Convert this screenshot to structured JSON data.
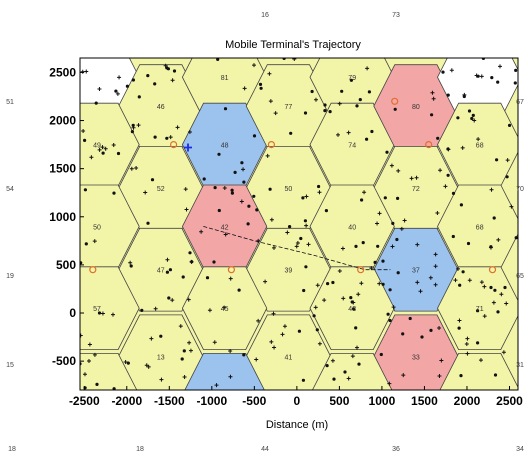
{
  "chart_data": {
    "type": "scatter",
    "title": "Mobile Terminal's Trajectory",
    "xlabel": "Distance (m)",
    "ylabel": "",
    "xlim": [
      -2550,
      2600
    ],
    "ylim": [
      -800,
      2650
    ],
    "xticks": [
      -2500,
      -2000,
      -1500,
      -1000,
      -500,
      0,
      500,
      1000,
      1500,
      2000,
      2500
    ],
    "yticks": [
      -500,
      0,
      500,
      1000,
      1500,
      2000,
      2500
    ],
    "grid": false,
    "colors": {
      "cell_default": "#f2f5a8",
      "cell_blue": "#9cc3ee",
      "cell_red": "#f3a6a6",
      "cell_white": "#ffffff",
      "edge": "#444444",
      "point": "#111111",
      "trajectory": "#111111",
      "bs_marker": "#e0702a",
      "current_position": "#1a2ce6"
    },
    "hex_grid": {
      "apothem": 430,
      "radius": 496
    },
    "cells": [
      {
        "x": -2350,
        "y": 2450,
        "id": "",
        "color": "white"
      },
      {
        "x": -1600,
        "y": 2150,
        "id": "46",
        "color": "default"
      },
      {
        "x": -850,
        "y": 2450,
        "id": "81",
        "color": "default"
      },
      {
        "x": -850,
        "y": 1750,
        "id": "48",
        "color": "blue"
      },
      {
        "x": -100,
        "y": 2150,
        "id": "77",
        "color": "default"
      },
      {
        "x": 650,
        "y": 2450,
        "id": "79",
        "color": "default"
      },
      {
        "x": 650,
        "y": 1750,
        "id": "74",
        "color": "default"
      },
      {
        "x": 1400,
        "y": 2150,
        "id": "80",
        "color": "red"
      },
      {
        "x": 2150,
        "y": 2450,
        "id": "",
        "color": "white"
      },
      {
        "x": 2150,
        "y": 1750,
        "id": "68",
        "color": "default"
      },
      {
        "x": -2350,
        "y": 1750,
        "id": "49",
        "color": "default"
      },
      {
        "x": -1600,
        "y": 1300,
        "id": "52",
        "color": "default"
      },
      {
        "x": -100,
        "y": 1300,
        "id": "50",
        "color": "default"
      },
      {
        "x": 1400,
        "y": 1300,
        "id": "72",
        "color": "default"
      },
      {
        "x": -2350,
        "y": 900,
        "id": "50",
        "color": "default"
      },
      {
        "x": -850,
        "y": 900,
        "id": "42",
        "color": "red"
      },
      {
        "x": 650,
        "y": 900,
        "id": "40",
        "color": "default"
      },
      {
        "x": 2150,
        "y": 900,
        "id": "68",
        "color": "default"
      },
      {
        "x": -1600,
        "y": 450,
        "id": "47",
        "color": "default"
      },
      {
        "x": -100,
        "y": 450,
        "id": "39",
        "color": "default"
      },
      {
        "x": 1400,
        "y": 450,
        "id": "37",
        "color": "blue"
      },
      {
        "x": -2350,
        "y": 50,
        "id": "57",
        "color": "default"
      },
      {
        "x": -850,
        "y": 50,
        "id": "45",
        "color": "default"
      },
      {
        "x": 650,
        "y": 50,
        "id": "43",
        "color": "default"
      },
      {
        "x": 2150,
        "y": 50,
        "id": "71",
        "color": "default"
      },
      {
        "x": -1600,
        "y": -450,
        "id": "13",
        "color": "default"
      },
      {
        "x": -100,
        "y": -450,
        "id": "41",
        "color": "default"
      },
      {
        "x": 1400,
        "y": -450,
        "id": "33",
        "color": "red"
      },
      {
        "x": -850,
        "y": -850,
        "id": "",
        "color": "blue"
      },
      {
        "x": 650,
        "y": -850,
        "id": "",
        "color": "default"
      },
      {
        "x": -2350,
        "y": -850,
        "id": "",
        "color": "default"
      },
      {
        "x": 2150,
        "y": -850,
        "id": "",
        "color": "default"
      }
    ],
    "base_station_markers": [
      {
        "x": -1450,
        "y": 1750
      },
      {
        "x": -300,
        "y": 1750
      },
      {
        "x": 1550,
        "y": 1750
      },
      {
        "x": 1150,
        "y": 2200
      },
      {
        "x": -2400,
        "y": 450
      },
      {
        "x": -770,
        "y": 450
      },
      {
        "x": 750,
        "y": 450
      },
      {
        "x": 2300,
        "y": 450
      }
    ],
    "trajectory": [
      {
        "x": -1100,
        "y": 900
      },
      {
        "x": -500,
        "y": 750
      },
      {
        "x": 200,
        "y": 600
      },
      {
        "x": 800,
        "y": 450
      },
      {
        "x": 1100,
        "y": 450
      }
    ],
    "current_position": {
      "x": -1280,
      "y": 1720
    },
    "margin_labels": [
      {
        "text": "16",
        "x": 265,
        "y": 17
      },
      {
        "text": "73",
        "x": 396,
        "y": 17
      },
      {
        "text": "51",
        "x": 10,
        "y": 104
      },
      {
        "text": "67",
        "x": 520,
        "y": 104
      },
      {
        "text": "54",
        "x": 10,
        "y": 191
      },
      {
        "text": "70",
        "x": 520,
        "y": 191
      },
      {
        "text": "19",
        "x": 10,
        "y": 278
      },
      {
        "text": "65",
        "x": 520,
        "y": 278
      },
      {
        "text": "15",
        "x": 10,
        "y": 367
      },
      {
        "text": "31",
        "x": 520,
        "y": 367
      },
      {
        "text": "18",
        "x": 12,
        "y": 451
      },
      {
        "text": "18",
        "x": 140,
        "y": 451
      },
      {
        "text": "44",
        "x": 265,
        "y": 451
      },
      {
        "text": "36",
        "x": 396,
        "y": 451
      },
      {
        "text": "34",
        "x": 520,
        "y": 451
      }
    ],
    "points_note": "dense random dots in every cell (users)"
  }
}
